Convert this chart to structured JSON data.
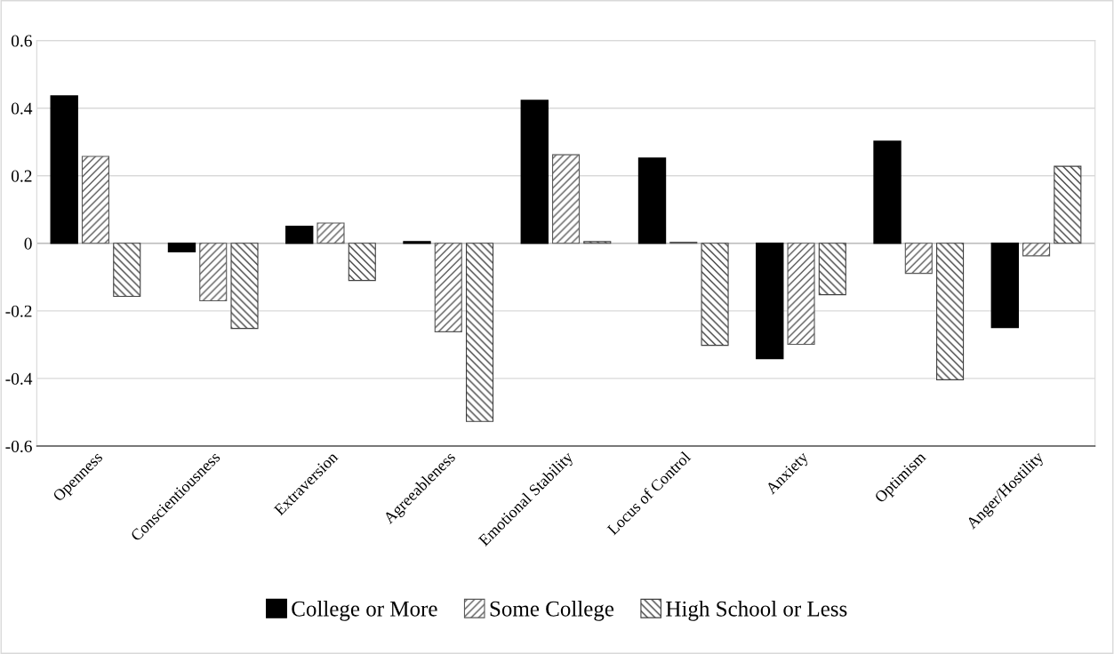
{
  "chart_data": {
    "type": "bar",
    "categories": [
      "Openness",
      "Conscientiousness",
      "Extraversion",
      "Agreeableness",
      "Emotional Stability",
      "Locus of Control",
      "Anxiety",
      "Optimism",
      "Anger/Hostility"
    ],
    "series": [
      {
        "name": "College or More",
        "color": "#000000",
        "values": [
          0.436,
          -0.025,
          0.05,
          0.005,
          0.423,
          0.252,
          -0.341,
          0.302,
          -0.249
        ]
      },
      {
        "name": "Some College",
        "color": "#595959",
        "values": [
          0.257,
          -0.17,
          0.06,
          -0.262,
          0.262,
          0.003,
          -0.299,
          -0.089,
          -0.037
        ]
      },
      {
        "name": "High School or Less",
        "color": "#404040",
        "values": [
          -0.157,
          -0.252,
          -0.11,
          -0.527,
          0.005,
          -0.302,
          -0.152,
          -0.404,
          0.228
        ]
      }
    ],
    "ylim": [
      -0.6,
      0.6
    ],
    "yticks": [
      -0.6,
      -0.4,
      -0.2,
      0,
      0.2,
      0.4,
      0.6
    ],
    "grid": "y",
    "legend": "bottom"
  }
}
